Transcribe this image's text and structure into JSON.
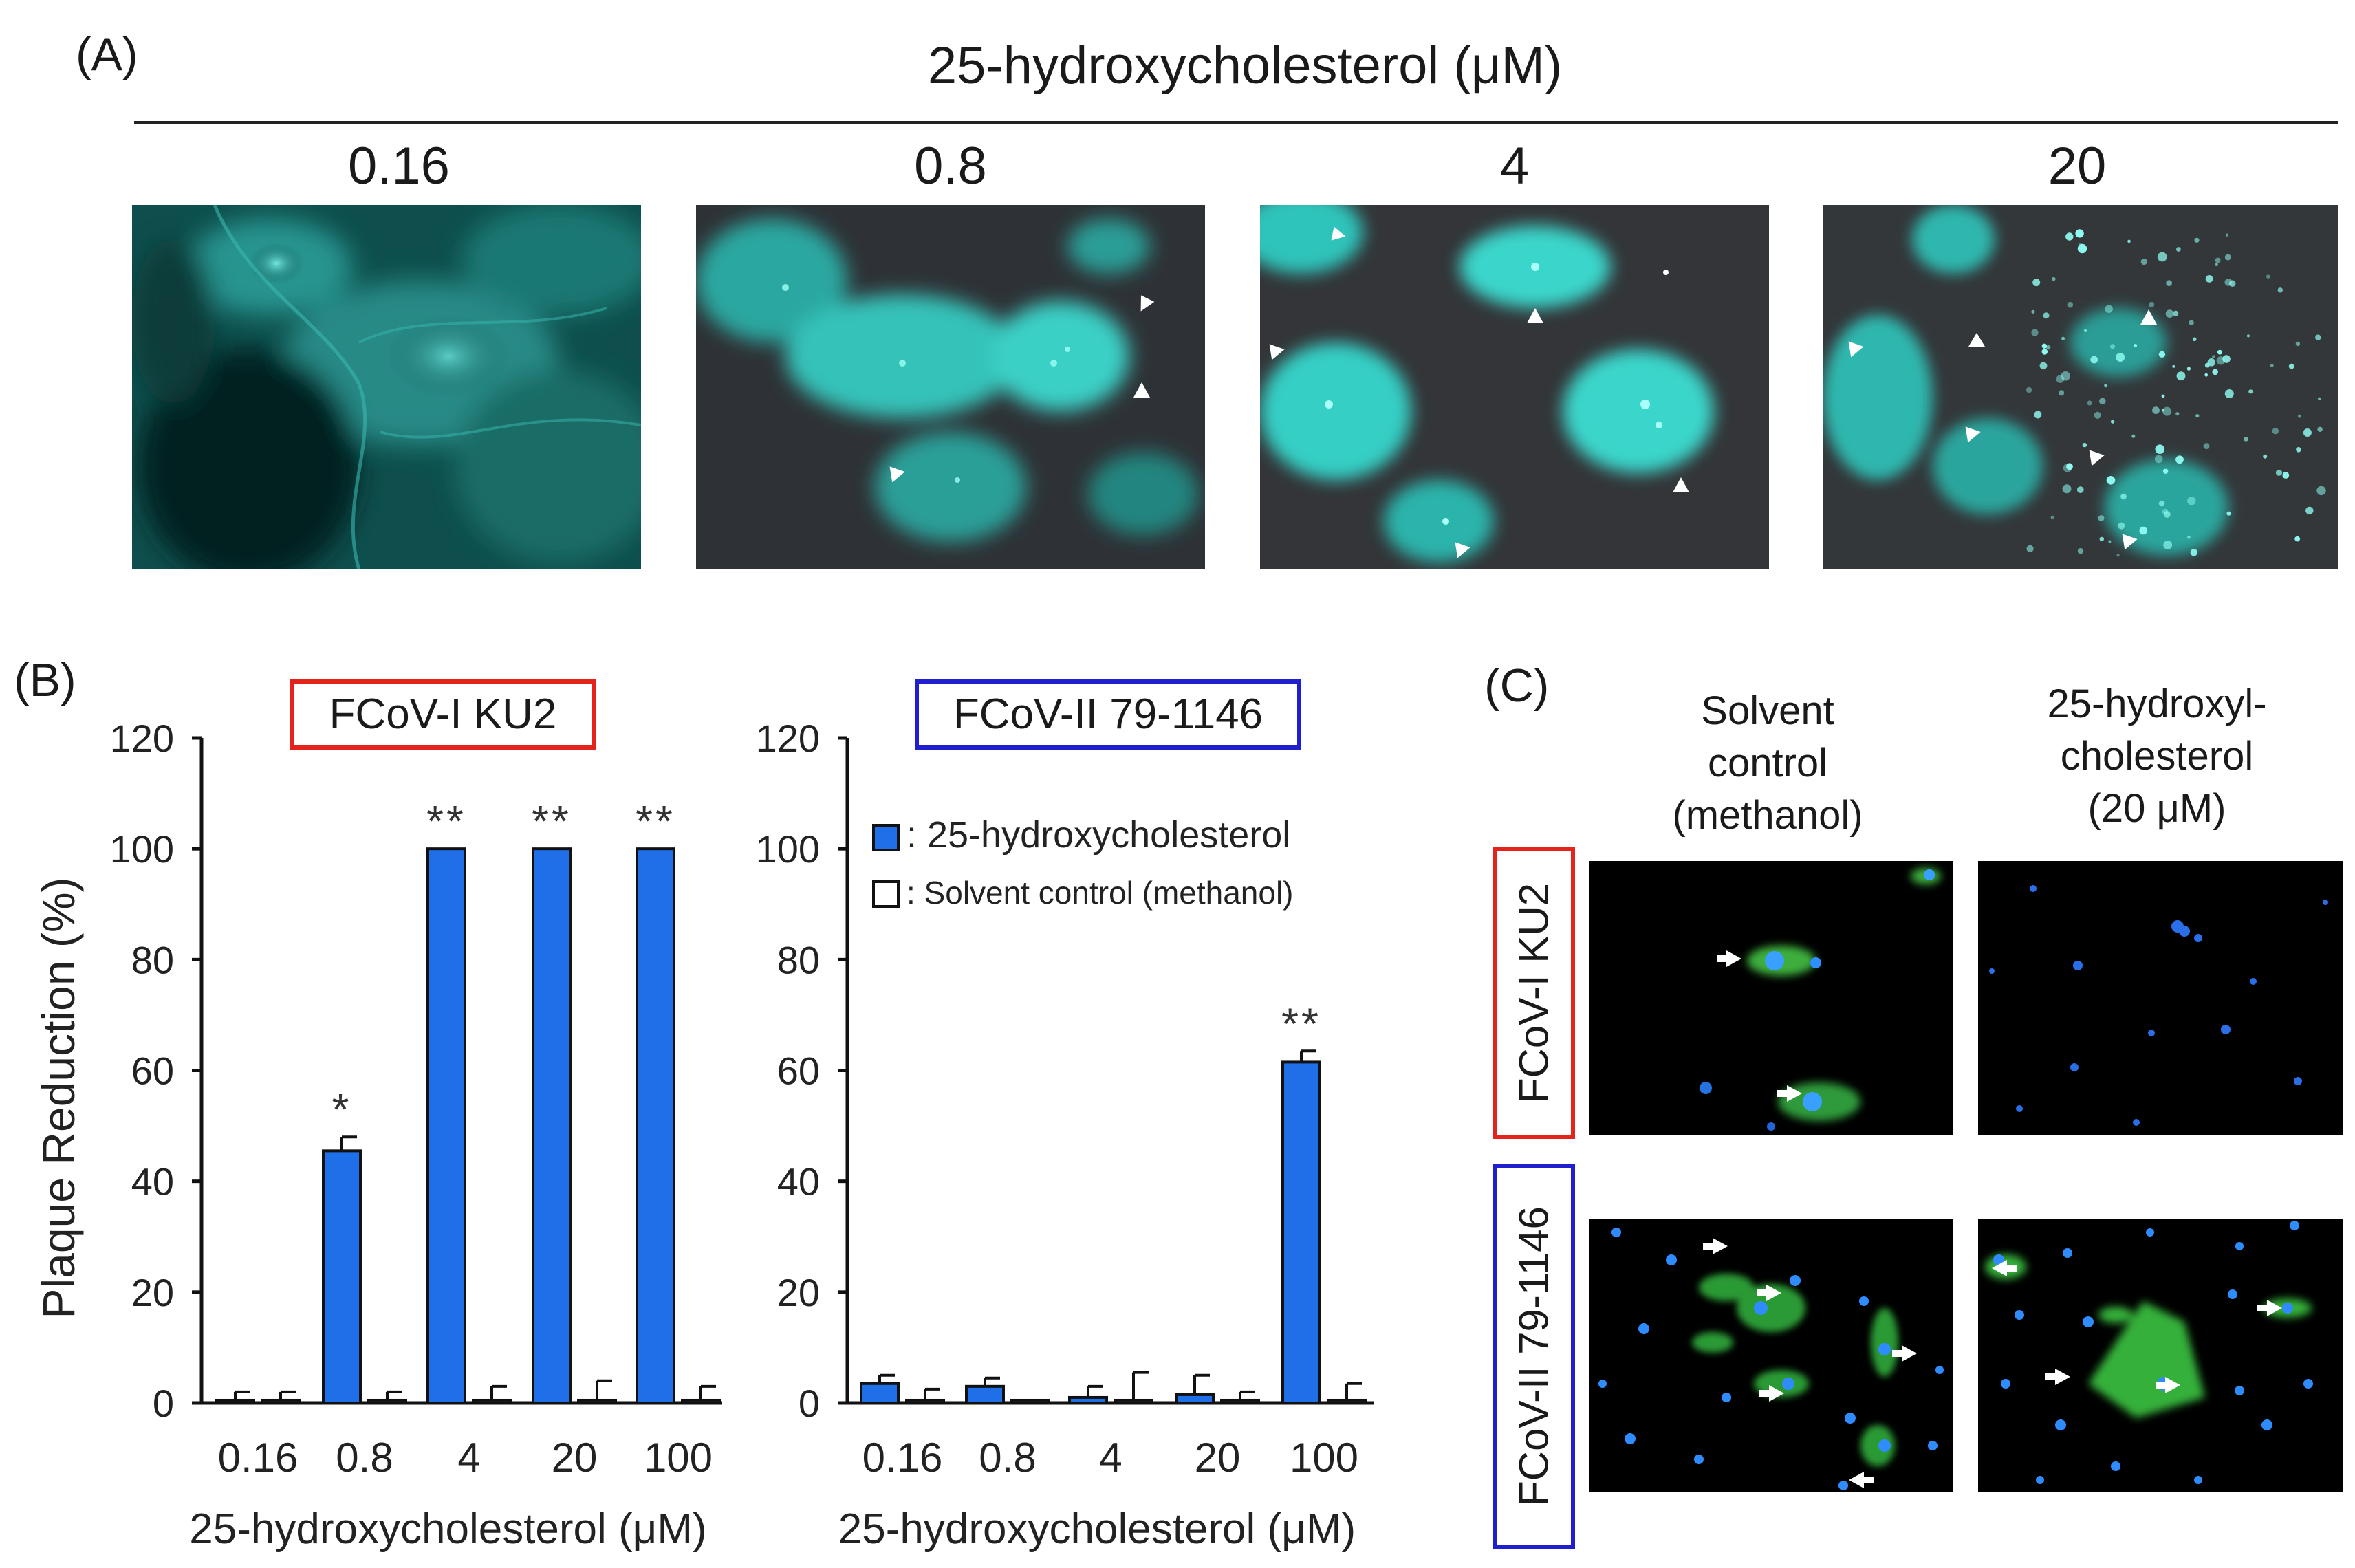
{
  "panel_a": {
    "letter": "(A)",
    "header": "25-hydroxycholesterol (μM)",
    "concentrations": [
      "0.16",
      "0.8",
      "4",
      "20"
    ]
  },
  "panel_b": {
    "letter": "(B)"
  },
  "panel_c": {
    "letter": "(C)",
    "col1": [
      "Solvent",
      "control",
      "(methanol)"
    ],
    "col2": [
      "25-hydroxyl-",
      "cholesterol",
      "(20 μM)"
    ],
    "row1": "FCoV-I KU2",
    "row2": "FCoV-II 79-1146"
  },
  "colors": {
    "treatment": "#1e6fe8",
    "control": "#ffffff",
    "red_box": "#e3231c",
    "blue_box": "#1f1fd0",
    "cyan": "#2fd8cf"
  },
  "chart_data": [
    {
      "type": "bar",
      "title": "FCoV-I KU2",
      "ylabel": "Plaque Reduction (%)",
      "xlabel": "25-hydroxycholesterol (μM)",
      "categories": [
        "0.16",
        "0.8",
        "4",
        "20",
        "100"
      ],
      "ylim": [
        0,
        120
      ],
      "yticks": [
        "0",
        "20",
        "40",
        "60",
        "80",
        "100",
        "120"
      ],
      "series": [
        {
          "name": "25-hydroxycholesterol",
          "values": [
            0.5,
            45.5,
            100,
            100,
            100
          ],
          "errors": [
            1.5,
            2.5,
            0,
            0,
            0
          ]
        },
        {
          "name": "Solvent control (methanol)",
          "values": [
            0.5,
            0.5,
            0.5,
            0.5,
            0.5
          ],
          "errors": [
            1.5,
            1.5,
            2.5,
            3.5,
            2.5
          ]
        }
      ],
      "significance": [
        "",
        "*",
        "**",
        "**",
        "**"
      ],
      "legend": false
    },
    {
      "type": "bar",
      "title": "FCoV-II 79-1146",
      "ylabel": "",
      "xlabel": "25-hydroxycholesterol (μM)",
      "categories": [
        "0.16",
        "0.8",
        "4",
        "20",
        "100"
      ],
      "ylim": [
        0,
        120
      ],
      "yticks": [
        "0",
        "20",
        "40",
        "60",
        "80",
        "100",
        "120"
      ],
      "series": [
        {
          "name": "25-hydroxycholesterol",
          "values": [
            3.5,
            3,
            1,
            1.5,
            61.5
          ],
          "errors": [
            1.5,
            1.5,
            2,
            3.5,
            2
          ]
        },
        {
          "name": "Solvent control (methanol)",
          "values": [
            0.5,
            0.5,
            0.5,
            0.5,
            0.5
          ],
          "errors": [
            2,
            0,
            5,
            1.5,
            3
          ]
        }
      ],
      "significance": [
        "",
        "",
        "",
        "",
        "**"
      ],
      "legend": true,
      "legend_labels": [
        ": 25-hydroxycholesterol",
        ": Solvent control (methanol)"
      ],
      "legend_position": "top-left"
    }
  ]
}
